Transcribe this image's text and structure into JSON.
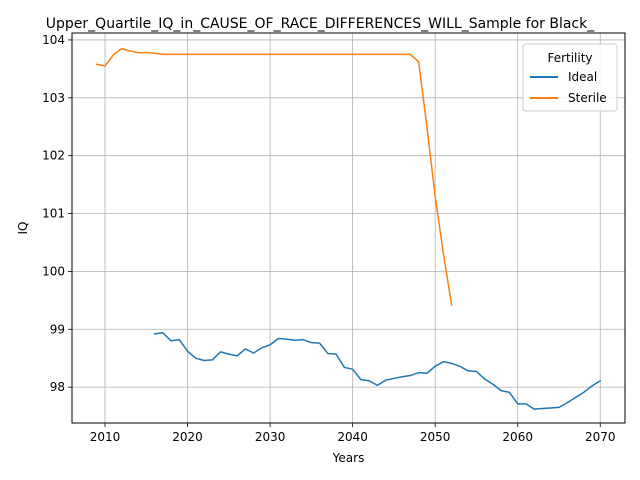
{
  "chart_data": {
    "type": "line",
    "title": "Upper_Quartile_IQ_in_CAUSE_OF_RACE_DIFFERENCES_WILL_Sample for Black_",
    "xlabel": "Years",
    "ylabel": "IQ",
    "xlim": [
      2006,
      2073
    ],
    "ylim": [
      97.38,
      104.12
    ],
    "x_ticks": [
      2010,
      2020,
      2030,
      2040,
      2050,
      2060,
      2070
    ],
    "y_ticks": [
      98,
      99,
      100,
      101,
      102,
      103,
      104
    ],
    "grid": true,
    "legend": {
      "title": "Fertility",
      "placement": "top-right"
    },
    "series": [
      {
        "name": "Ideal",
        "color": "#1f77b4",
        "x": [
          2016,
          2017,
          2018,
          2019,
          2020,
          2021,
          2022,
          2023,
          2024,
          2025,
          2026,
          2027,
          2028,
          2029,
          2030,
          2031,
          2032,
          2033,
          2034,
          2035,
          2036,
          2037,
          2038,
          2039,
          2040,
          2041,
          2042,
          2043,
          2044,
          2045,
          2046,
          2047,
          2048,
          2049,
          2050,
          2051,
          2052,
          2053,
          2054,
          2055,
          2056,
          2057,
          2058,
          2059,
          2060,
          2061,
          2062,
          2063,
          2064,
          2065,
          2066,
          2067,
          2068,
          2069,
          2070
        ],
        "y": [
          98.92,
          98.94,
          98.8,
          98.82,
          98.62,
          98.5,
          98.46,
          98.47,
          98.61,
          98.57,
          98.54,
          98.66,
          98.59,
          98.68,
          98.73,
          98.84,
          98.83,
          98.81,
          98.82,
          98.77,
          98.76,
          98.58,
          98.57,
          98.34,
          98.31,
          98.13,
          98.11,
          98.03,
          98.12,
          98.15,
          98.18,
          98.2,
          98.25,
          98.24,
          98.36,
          98.44,
          98.41,
          98.36,
          98.28,
          98.27,
          98.14,
          98.05,
          97.94,
          97.91,
          97.71,
          97.71,
          97.62,
          97.63,
          97.64,
          97.65,
          97.73,
          97.82,
          97.91,
          98.02,
          98.11
        ]
      },
      {
        "name": "Sterile",
        "color": "#ff7f0e",
        "x": [
          2009,
          2010,
          2011,
          2012,
          2013,
          2014,
          2015,
          2016,
          2017,
          2018,
          2019,
          2020,
          2025,
          2030,
          2035,
          2040,
          2045,
          2046,
          2047,
          2048,
          2049,
          2050,
          2051,
          2052
        ],
        "y": [
          103.58,
          103.55,
          103.74,
          103.85,
          103.81,
          103.78,
          103.78,
          103.77,
          103.75,
          103.75,
          103.75,
          103.75,
          103.75,
          103.75,
          103.75,
          103.75,
          103.75,
          103.75,
          103.75,
          103.62,
          102.5,
          101.3,
          100.3,
          99.42
        ]
      }
    ]
  }
}
